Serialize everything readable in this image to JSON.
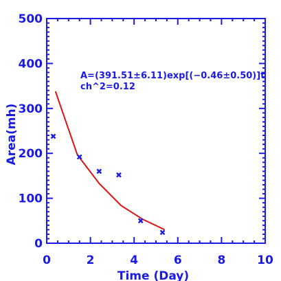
{
  "colors": {
    "axis": "#1a1ae6",
    "points": "#1a1ae6",
    "fit": "#e01010",
    "background": "#ffffff"
  },
  "chart_data": {
    "type": "scatter",
    "title": "",
    "xlabel": "Time (Day)",
    "ylabel": "Area(mh)",
    "xlim": [
      0,
      10
    ],
    "ylim": [
      0,
      500
    ],
    "x_ticks": [
      "0",
      "2",
      "4",
      "6",
      "8",
      "10"
    ],
    "y_ticks": [
      "0",
      "100",
      "200",
      "300",
      "400",
      "500"
    ],
    "annotations": [
      "A=(391.51±6.11)exp[(−0.46±0.50)]t",
      "ch^2=0.12"
    ],
    "grid": false,
    "legend": "none",
    "series": [
      {
        "marker": "x",
        "x": [
          0.3,
          1.5,
          2.4,
          3.3,
          4.3,
          5.3
        ],
        "y": [
          238,
          192,
          160,
          152,
          50,
          24
        ]
      },
      {
        "marker": "line",
        "x": [
          0.4,
          1.4,
          2.4,
          3.4,
          4.4,
          5.4
        ],
        "y": [
          338,
          197,
          133,
          84,
          53,
          30
        ]
      }
    ]
  }
}
